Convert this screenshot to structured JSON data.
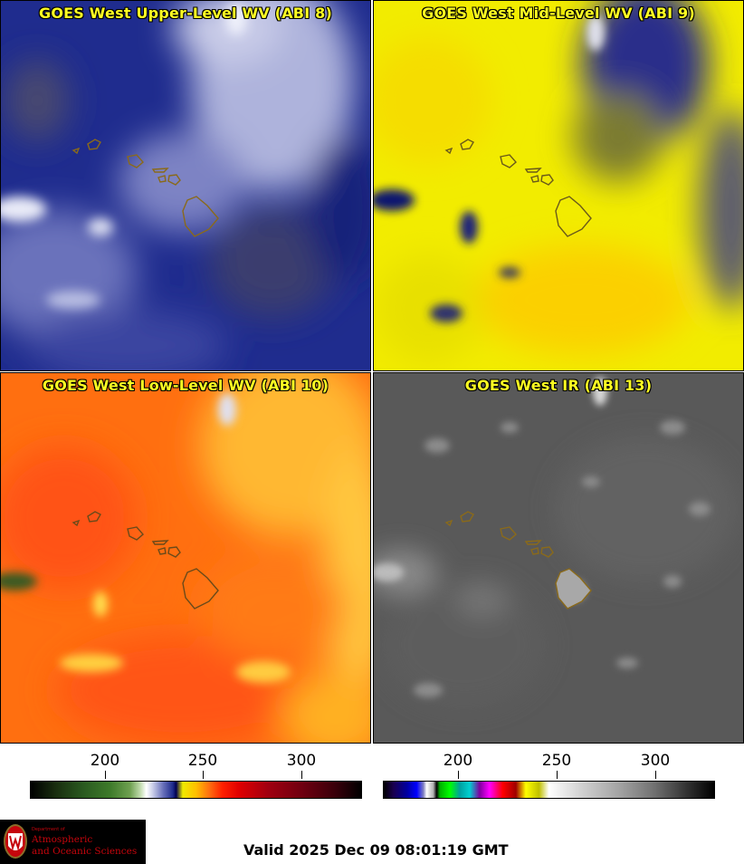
{
  "panels": [
    {
      "title": "GOES West Upper-Level WV (ABI 8)",
      "theme": "upper"
    },
    {
      "title": "GOES West Mid-Level WV (ABI 9)",
      "theme": "mid"
    },
    {
      "title": "GOES West Low-Level WV (ABI 10)",
      "theme": "low"
    },
    {
      "title": "GOES West IR (ABI 13)",
      "theme": "ir"
    }
  ],
  "colorbars": {
    "left": {
      "ticks": [
        "200",
        "250",
        "300"
      ]
    },
    "right": {
      "ticks": [
        "200",
        "250",
        "300"
      ]
    }
  },
  "logo": {
    "dept_line": "Department of",
    "line1": "Atmospheric",
    "line2": "and Oceanic Sciences"
  },
  "valid_text": "Valid 2025 Dec 09 08:01:19 GMT",
  "colors": {
    "title": "#ffff22",
    "upper_bg": "#1e2b8c",
    "mid_bg": "#f0ea00",
    "low_bg": "#ff6a10",
    "ir_bg": "#5a5a5a",
    "coastline": "#8a6a1a"
  }
}
